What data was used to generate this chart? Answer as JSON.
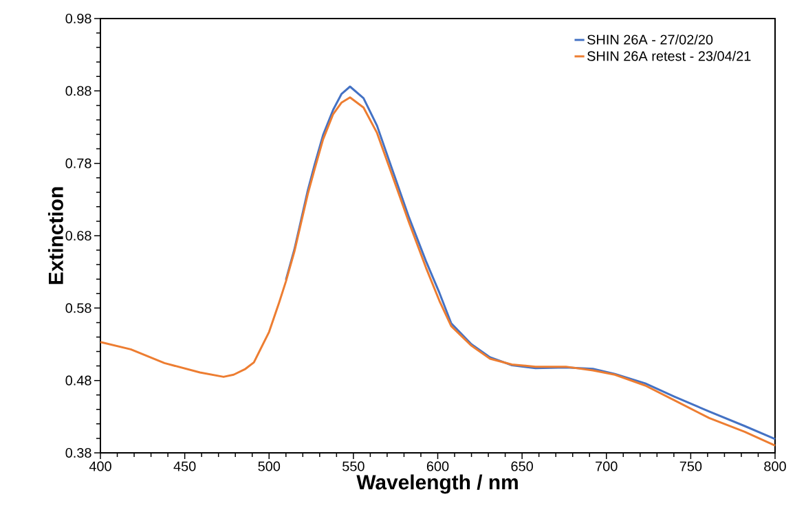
{
  "chart_data": {
    "type": "line",
    "xlabel": "Wavelength / nm",
    "ylabel": "Extinction",
    "x": [
      400,
      418,
      438,
      459,
      473,
      479,
      486,
      491,
      500,
      506,
      510,
      515,
      519,
      523,
      527,
      532,
      538,
      543,
      548,
      556,
      564,
      574,
      583,
      593,
      601,
      608,
      620,
      631,
      644,
      658,
      676,
      692,
      705,
      723,
      740,
      761,
      782,
      800
    ],
    "series": [
      {
        "name": "SHIN 26A - 27/02/20",
        "color": "#4472c4",
        "values": [
          null,
          null,
          null,
          null,
          null,
          null,
          null,
          null,
          null,
          null,
          0.619,
          0.661,
          0.702,
          0.743,
          0.778,
          0.819,
          0.854,
          0.876,
          0.886,
          0.87,
          0.832,
          0.765,
          0.705,
          0.645,
          0.601,
          0.559,
          0.53,
          0.512,
          0.501,
          0.497,
          0.498,
          0.496,
          0.489,
          0.476,
          0.458,
          0.437,
          0.417,
          0.399
        ]
      },
      {
        "name": "SHIN 26A retest - 23/04/21",
        "color": "#ed7d31",
        "values": [
          0.533,
          0.523,
          0.504,
          0.491,
          0.485,
          0.488,
          0.496,
          0.505,
          0.547,
          0.588,
          0.617,
          0.658,
          0.698,
          0.738,
          0.772,
          0.813,
          0.848,
          0.864,
          0.871,
          0.857,
          0.822,
          0.757,
          0.698,
          0.636,
          0.59,
          0.555,
          0.528,
          0.51,
          0.502,
          0.499,
          0.499,
          0.494,
          0.488,
          0.473,
          0.453,
          0.428,
          0.409,
          0.39
        ]
      }
    ],
    "xlim": [
      400,
      800
    ],
    "xticks": [
      400,
      450,
      500,
      550,
      600,
      650,
      700,
      750,
      800
    ],
    "ylim": [
      0.38,
      0.98
    ],
    "yticks": [
      0.38,
      0.48,
      0.58,
      0.68,
      0.78,
      0.88,
      0.98
    ],
    "legend": "top right",
    "grid": false,
    "marker": "none",
    "line_style": "solid"
  }
}
